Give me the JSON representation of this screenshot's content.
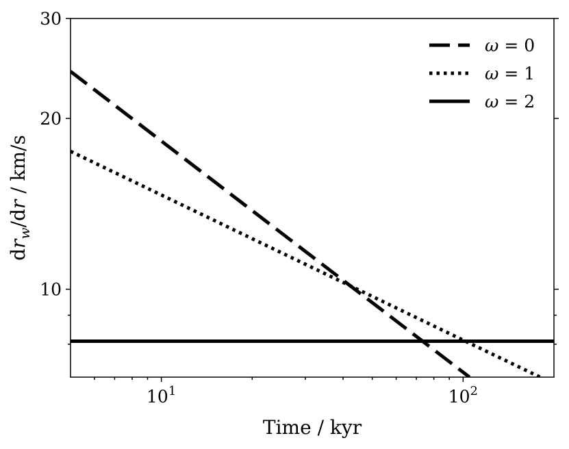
{
  "chart_data": {
    "type": "line",
    "xscale": "log",
    "yscale": "log",
    "xlim": [
      5,
      200
    ],
    "ylim": [
      7,
      30
    ],
    "xlabel": "Time / kyr",
    "ylabel": {
      "prefix": "d",
      "var": "r",
      "sub": "w",
      "mid": "/d",
      "var2": "r",
      "suffix": " / km/s"
    },
    "x_ticks": [
      {
        "value": 10,
        "base": "10",
        "exp": "1"
      },
      {
        "value": 100,
        "base": "10",
        "exp": "2"
      }
    ],
    "y_ticks": [
      {
        "value": 10,
        "label": "10"
      },
      {
        "value": 20,
        "label": "20"
      },
      {
        "value": 30,
        "label": "30"
      }
    ],
    "y_minor_ticks": [
      8,
      9
    ],
    "legend": {
      "position": "top-right",
      "symbol": "ω",
      "eq": " = "
    },
    "grid": false,
    "series": [
      {
        "name": "0",
        "style": "dashed",
        "x": [
          5,
          105
        ],
        "y": [
          24.2,
          7.0
        ]
      },
      {
        "name": "1",
        "style": "dotted",
        "x": [
          5,
          180
        ],
        "y": [
          17.5,
          7.0
        ]
      },
      {
        "name": "2",
        "style": "solid",
        "x": [
          5,
          200
        ],
        "y": [
          8.1,
          8.1
        ]
      }
    ]
  }
}
